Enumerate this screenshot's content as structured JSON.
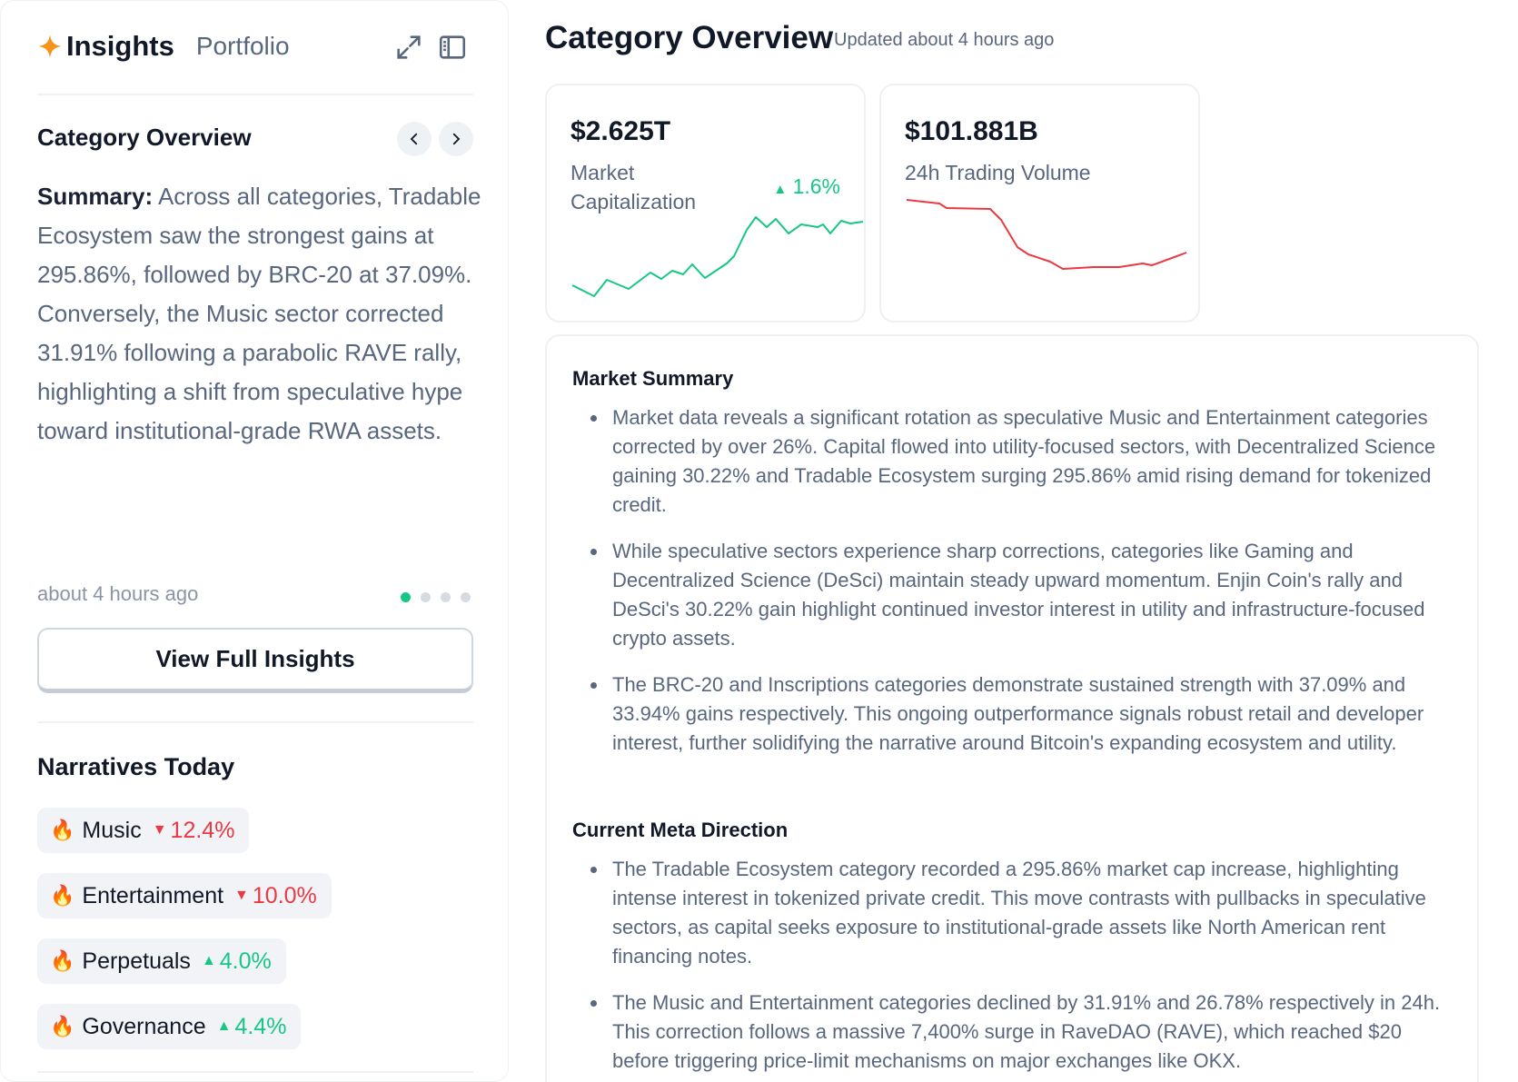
{
  "sidebar": {
    "title": "Insights",
    "portfolio_tab": "Portfolio",
    "card_title": "Category Overview",
    "summary_label": "Summary:",
    "summary_text": "Across all categories, Tradable Ecosystem saw the strongest gains at 295.86%, followed by BRC-20 at 37.09%. Conversely, the Music sector corrected 31.91% following a parabolic RAVE rally, highlighting a shift from speculative hype toward institutional-grade RWA assets.",
    "timestamp": "about 4 hours ago",
    "pager": {
      "total": 4,
      "active": 1
    },
    "view_button": "View Full Insights",
    "narratives_title": "Narratives Today",
    "narratives": [
      {
        "label": "Music",
        "direction": "down",
        "arrow": "▼",
        "change": "12.4%"
      },
      {
        "label": "Entertainment",
        "direction": "down",
        "arrow": "▼",
        "change": "10.0%"
      },
      {
        "label": "Perpetuals",
        "direction": "up",
        "arrow": "▲",
        "change": "4.0%"
      },
      {
        "label": "Governance",
        "direction": "up",
        "arrow": "▲",
        "change": "4.4%"
      }
    ]
  },
  "main": {
    "title": "Category Overview",
    "updated": "Updated about 4 hours ago",
    "market_cap": {
      "value": "$2.625T",
      "label_line1": "Market",
      "label_line2": "Capitalization",
      "change": "1.6%",
      "change_arrow": "▲",
      "trend_color": "#16c784"
    },
    "volume": {
      "value": "$101.881B",
      "label": "24h Trading Volume",
      "trend_color": "#ea3943"
    },
    "market_summary_heading": "Market Summary",
    "market_summary": [
      "Market data reveals a significant rotation as speculative Music and Entertainment categories corrected by over 26%. Capital flowed into utility-focused sectors, with Decentralized Science gaining 30.22% and Tradable Ecosystem surging 295.86% amid rising demand for tokenized credit.",
      "While speculative sectors experience sharp corrections, categories like Gaming and Decentralized Science (DeSci) maintain steady upward momentum. Enjin Coin's rally and DeSci's 30.22% gain highlight continued investor interest in utility and infrastructure-focused crypto assets.",
      "The BRC-20 and Inscriptions categories demonstrate sustained strength with 37.09% and 33.94% gains respectively. This ongoing outperformance signals robust retail and developer interest, further solidifying the narrative around Bitcoin's expanding ecosystem and utility."
    ],
    "meta_heading": "Current Meta Direction",
    "meta_direction": [
      "The Tradable Ecosystem category recorded a 295.86% market cap increase, highlighting intense interest in tokenized private credit. This move contrasts with pullbacks in speculative sectors, as capital seeks exposure to institutional-grade assets like North American rent financing notes.",
      "The Music and Entertainment categories declined by 31.91% and 26.78% respectively in 24h. This correction follows a massive 7,400% surge in RaveDAO (RAVE), which reached $20 before triggering price-limit mechanisms on major exchanges like OKX."
    ]
  },
  "colors": {
    "up": "#16c784",
    "down": "#ea3943",
    "accent_star": "#f7931a"
  }
}
